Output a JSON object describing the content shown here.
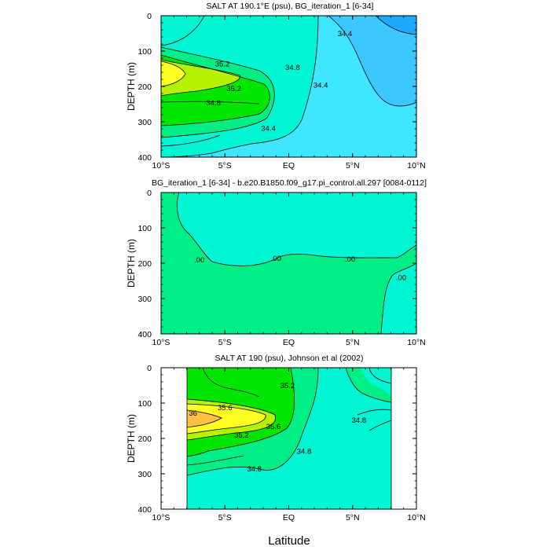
{
  "figure": {
    "xaxis_title": "Latitude"
  },
  "chart_data": [
    {
      "type": "contour",
      "title": "SALT AT 190.1°E (psu), BG_iteration_1 [6-34]",
      "xlabel": "",
      "ylabel": "DEPTH (m)",
      "xlim": [
        -10,
        10
      ],
      "ylim": [
        400,
        0
      ],
      "xticks": [
        "10°S",
        "5°S",
        "EQ",
        "5°N",
        "10°N"
      ],
      "yticks": [
        "0",
        "100",
        "200",
        "300",
        "400"
      ],
      "contour_labels": [
        {
          "text": "35.2",
          "x": -5.2,
          "y": 135
        },
        {
          "text": "35.2",
          "x": -4.3,
          "y": 205
        },
        {
          "text": "34.8",
          "x": -5.9,
          "y": 245
        },
        {
          "text": "34.8",
          "x": 0.3,
          "y": 145
        },
        {
          "text": "34.4",
          "x": 4.4,
          "y": 50
        },
        {
          "text": "34.4",
          "x": 2.5,
          "y": 195
        },
        {
          "text": "34.4",
          "x": -1.6,
          "y": 318
        }
      ],
      "colors": {
        "c1": "#1fa8ff",
        "c2": "#3ac8ff",
        "c3": "#3ee6ff",
        "c4": "#00f5d3",
        "c5": "#00ee86",
        "c6": "#00e600",
        "c7": "#b4f200",
        "c8": "#ffff22"
      }
    },
    {
      "type": "contour",
      "title": "BG_iteration_1 [6-34] - b.e20.B1850.f09_g17.pi_control.all.297 [0084-0112]",
      "xlabel": "",
      "ylabel": "DEPTH (m)",
      "xlim": [
        -10,
        10
      ],
      "ylim": [
        400,
        0
      ],
      "xticks": [
        "10°S",
        "5°S",
        "EQ",
        "5°N",
        "10°N"
      ],
      "yticks": [
        "0",
        "100",
        "200",
        "300",
        "400"
      ],
      "contour_labels": [
        {
          "text": ".00",
          "x": -7.0,
          "y": 190
        },
        {
          "text": ".00",
          "x": -1.0,
          "y": 185
        },
        {
          "text": ".00",
          "x": 4.8,
          "y": 188
        },
        {
          "text": ".00",
          "x": 8.8,
          "y": 240
        }
      ],
      "colors": {
        "positive": "#00ee86",
        "negative": "#00f5d3"
      }
    },
    {
      "type": "contour",
      "title": "SALT AT 190 (psu), Johnson et al (2002)",
      "xlabel": "Latitude",
      "ylabel": "DEPTH (m)",
      "xlim": [
        -10,
        10
      ],
      "ylim": [
        400,
        0
      ],
      "data_xrange": [
        -8,
        8
      ],
      "xticks": [
        "10°S",
        "5°S",
        "EQ",
        "5°N",
        "10°N"
      ],
      "yticks": [
        "0",
        "100",
        "200",
        "300",
        "400"
      ],
      "contour_labels": [
        {
          "text": "35.2",
          "x": -0.1,
          "y": 50
        },
        {
          "text": "35.6",
          "x": -5.0,
          "y": 112
        },
        {
          "text": "36",
          "x": -7.5,
          "y": 128
        },
        {
          "text": "35.6",
          "x": -1.2,
          "y": 165
        },
        {
          "text": "35.2",
          "x": -3.7,
          "y": 190
        },
        {
          "text": "34.8",
          "x": 5.5,
          "y": 148
        },
        {
          "text": "34.8",
          "x": 1.2,
          "y": 235
        },
        {
          "text": "34.8",
          "x": -2.7,
          "y": 285
        }
      ],
      "colors": {
        "c4": "#00f5d3",
        "c5": "#00ee86",
        "c6": "#00e600",
        "c7": "#b4f200",
        "c8": "#ffff22",
        "c9": "#ffc040"
      }
    }
  ]
}
